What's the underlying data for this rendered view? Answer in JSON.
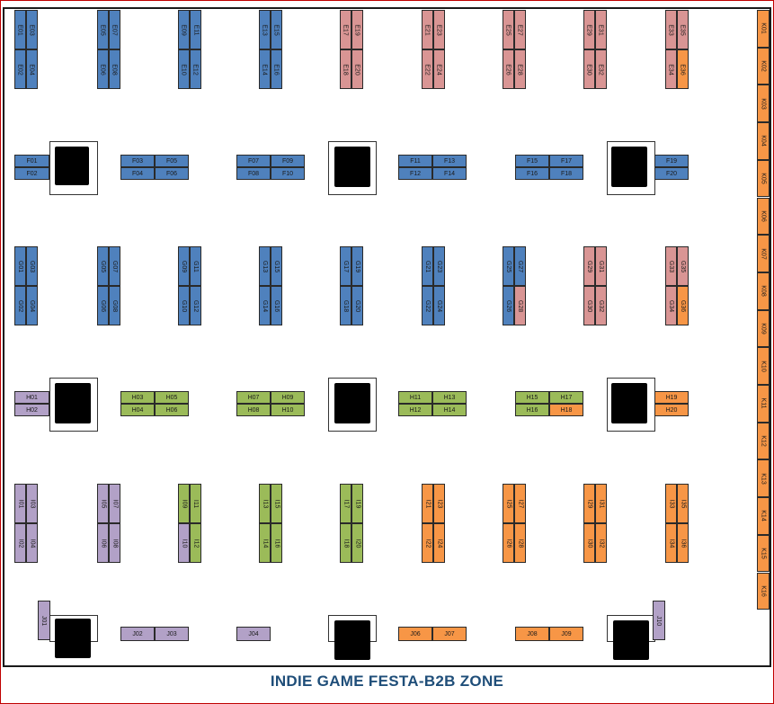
{
  "title": "INDIE GAME FESTA-B2B ZONE",
  "colors": {
    "blue": "#4f81bd",
    "pink": "#d99594",
    "orange": "#f79646",
    "green": "#9bbb59",
    "purple": "#b2a1c7",
    "frame": "#c00000",
    "title": "#1f4e79"
  },
  "booths": [
    {
      "id": "E01",
      "color": "blue"
    },
    {
      "id": "E02",
      "color": "blue"
    },
    {
      "id": "E03",
      "color": "blue"
    },
    {
      "id": "E04",
      "color": "blue"
    },
    {
      "id": "E05",
      "color": "blue"
    },
    {
      "id": "E06",
      "color": "blue"
    },
    {
      "id": "E07",
      "color": "blue"
    },
    {
      "id": "E08",
      "color": "blue"
    },
    {
      "id": "E09",
      "color": "blue"
    },
    {
      "id": "E10",
      "color": "blue"
    },
    {
      "id": "E11",
      "color": "blue"
    },
    {
      "id": "E12",
      "color": "blue"
    },
    {
      "id": "E13",
      "color": "blue"
    },
    {
      "id": "E14",
      "color": "blue"
    },
    {
      "id": "E15",
      "color": "blue"
    },
    {
      "id": "E16",
      "color": "blue"
    },
    {
      "id": "E17",
      "color": "pink"
    },
    {
      "id": "E18",
      "color": "pink"
    },
    {
      "id": "E19",
      "color": "pink"
    },
    {
      "id": "E20",
      "color": "pink"
    },
    {
      "id": "E21",
      "color": "pink"
    },
    {
      "id": "E22",
      "color": "pink"
    },
    {
      "id": "E23",
      "color": "pink"
    },
    {
      "id": "E24",
      "color": "pink"
    },
    {
      "id": "E25",
      "color": "pink"
    },
    {
      "id": "E26",
      "color": "pink"
    },
    {
      "id": "E27",
      "color": "pink"
    },
    {
      "id": "E28",
      "color": "pink"
    },
    {
      "id": "E29",
      "color": "pink"
    },
    {
      "id": "E30",
      "color": "pink"
    },
    {
      "id": "E31",
      "color": "pink"
    },
    {
      "id": "E32",
      "color": "pink"
    },
    {
      "id": "E33",
      "color": "pink"
    },
    {
      "id": "E34",
      "color": "pink"
    },
    {
      "id": "E35",
      "color": "pink"
    },
    {
      "id": "E36",
      "color": "orange"
    },
    {
      "id": "F01",
      "color": "blue"
    },
    {
      "id": "F02",
      "color": "blue"
    },
    {
      "id": "F03",
      "color": "blue"
    },
    {
      "id": "F04",
      "color": "blue"
    },
    {
      "id": "F05",
      "color": "blue"
    },
    {
      "id": "F06",
      "color": "blue"
    },
    {
      "id": "F07",
      "color": "blue"
    },
    {
      "id": "F08",
      "color": "blue"
    },
    {
      "id": "F09",
      "color": "blue"
    },
    {
      "id": "F10",
      "color": "blue"
    },
    {
      "id": "F11",
      "color": "blue"
    },
    {
      "id": "F12",
      "color": "blue"
    },
    {
      "id": "F13",
      "color": "blue"
    },
    {
      "id": "F14",
      "color": "blue"
    },
    {
      "id": "F15",
      "color": "blue"
    },
    {
      "id": "F16",
      "color": "blue"
    },
    {
      "id": "F17",
      "color": "blue"
    },
    {
      "id": "F18",
      "color": "blue"
    },
    {
      "id": "F19",
      "color": "blue"
    },
    {
      "id": "F20",
      "color": "blue"
    },
    {
      "id": "G01",
      "color": "blue"
    },
    {
      "id": "G02",
      "color": "blue"
    },
    {
      "id": "G03",
      "color": "blue"
    },
    {
      "id": "G04",
      "color": "blue"
    },
    {
      "id": "G05",
      "color": "blue"
    },
    {
      "id": "G06",
      "color": "blue"
    },
    {
      "id": "G07",
      "color": "blue"
    },
    {
      "id": "G08",
      "color": "blue"
    },
    {
      "id": "G09",
      "color": "blue"
    },
    {
      "id": "G10",
      "color": "blue"
    },
    {
      "id": "G11",
      "color": "blue"
    },
    {
      "id": "G12",
      "color": "blue"
    },
    {
      "id": "G13",
      "color": "blue"
    },
    {
      "id": "G14",
      "color": "blue"
    },
    {
      "id": "G15",
      "color": "blue"
    },
    {
      "id": "G16",
      "color": "blue"
    },
    {
      "id": "G17",
      "color": "blue"
    },
    {
      "id": "G18",
      "color": "blue"
    },
    {
      "id": "G19",
      "color": "blue"
    },
    {
      "id": "G20",
      "color": "blue"
    },
    {
      "id": "G21",
      "color": "blue"
    },
    {
      "id": "G22",
      "color": "blue"
    },
    {
      "id": "G23",
      "color": "blue"
    },
    {
      "id": "G24",
      "color": "blue"
    },
    {
      "id": "G25",
      "color": "blue"
    },
    {
      "id": "G26",
      "color": "blue"
    },
    {
      "id": "G27",
      "color": "blue"
    },
    {
      "id": "G28",
      "color": "pink"
    },
    {
      "id": "G29",
      "color": "pink"
    },
    {
      "id": "G30",
      "color": "pink"
    },
    {
      "id": "G31",
      "color": "pink"
    },
    {
      "id": "G32",
      "color": "pink"
    },
    {
      "id": "G33",
      "color": "pink"
    },
    {
      "id": "G34",
      "color": "pink"
    },
    {
      "id": "G35",
      "color": "pink"
    },
    {
      "id": "G36",
      "color": "orange"
    },
    {
      "id": "H01",
      "color": "purple"
    },
    {
      "id": "H02",
      "color": "purple"
    },
    {
      "id": "H03",
      "color": "green"
    },
    {
      "id": "H04",
      "color": "green"
    },
    {
      "id": "H05",
      "color": "green"
    },
    {
      "id": "H06",
      "color": "green"
    },
    {
      "id": "H07",
      "color": "green"
    },
    {
      "id": "H08",
      "color": "green"
    },
    {
      "id": "H09",
      "color": "green"
    },
    {
      "id": "H10",
      "color": "green"
    },
    {
      "id": "H11",
      "color": "green"
    },
    {
      "id": "H12",
      "color": "green"
    },
    {
      "id": "H13",
      "color": "green"
    },
    {
      "id": "H14",
      "color": "green"
    },
    {
      "id": "H15",
      "color": "green"
    },
    {
      "id": "H16",
      "color": "green"
    },
    {
      "id": "H17",
      "color": "green"
    },
    {
      "id": "H18",
      "color": "orange"
    },
    {
      "id": "H19",
      "color": "orange"
    },
    {
      "id": "H20",
      "color": "orange"
    },
    {
      "id": "I01",
      "color": "purple"
    },
    {
      "id": "I02",
      "color": "purple"
    },
    {
      "id": "I03",
      "color": "purple"
    },
    {
      "id": "I04",
      "color": "purple"
    },
    {
      "id": "I05",
      "color": "purple"
    },
    {
      "id": "I06",
      "color": "purple"
    },
    {
      "id": "I07",
      "color": "purple"
    },
    {
      "id": "I08",
      "color": "purple"
    },
    {
      "id": "I09",
      "color": "green"
    },
    {
      "id": "I10",
      "color": "purple"
    },
    {
      "id": "I11",
      "color": "green"
    },
    {
      "id": "I12",
      "color": "green"
    },
    {
      "id": "I13",
      "color": "green"
    },
    {
      "id": "I14",
      "color": "green"
    },
    {
      "id": "I15",
      "color": "green"
    },
    {
      "id": "I16",
      "color": "green"
    },
    {
      "id": "I17",
      "color": "green"
    },
    {
      "id": "I18",
      "color": "green"
    },
    {
      "id": "I19",
      "color": "green"
    },
    {
      "id": "I20",
      "color": "green"
    },
    {
      "id": "I21",
      "color": "orange"
    },
    {
      "id": "I22",
      "color": "orange"
    },
    {
      "id": "I23",
      "color": "orange"
    },
    {
      "id": "I24",
      "color": "orange"
    },
    {
      "id": "I25",
      "color": "orange"
    },
    {
      "id": "I26",
      "color": "orange"
    },
    {
      "id": "I27",
      "color": "orange"
    },
    {
      "id": "I28",
      "color": "orange"
    },
    {
      "id": "I29",
      "color": "orange"
    },
    {
      "id": "I30",
      "color": "orange"
    },
    {
      "id": "I31",
      "color": "orange"
    },
    {
      "id": "I32",
      "color": "orange"
    },
    {
      "id": "I33",
      "color": "orange"
    },
    {
      "id": "I34",
      "color": "orange"
    },
    {
      "id": "I35",
      "color": "orange"
    },
    {
      "id": "I36",
      "color": "orange"
    },
    {
      "id": "J01",
      "color": "purple"
    },
    {
      "id": "J02",
      "color": "purple"
    },
    {
      "id": "J03",
      "color": "purple"
    },
    {
      "id": "J04",
      "color": "purple"
    },
    {
      "id": "J06",
      "color": "orange"
    },
    {
      "id": "J07",
      "color": "orange"
    },
    {
      "id": "J08",
      "color": "orange"
    },
    {
      "id": "J09",
      "color": "orange"
    },
    {
      "id": "J10",
      "color": "purple"
    },
    {
      "id": "K01",
      "color": "orange"
    },
    {
      "id": "K02",
      "color": "orange"
    },
    {
      "id": "K03",
      "color": "orange"
    },
    {
      "id": "K04",
      "color": "orange"
    },
    {
      "id": "K05",
      "color": "orange"
    },
    {
      "id": "K06",
      "color": "orange"
    },
    {
      "id": "K07",
      "color": "orange"
    },
    {
      "id": "K08",
      "color": "orange"
    },
    {
      "id": "K09",
      "color": "orange"
    },
    {
      "id": "K10",
      "color": "orange"
    },
    {
      "id": "K11",
      "color": "orange"
    },
    {
      "id": "K12",
      "color": "orange"
    },
    {
      "id": "K13",
      "color": "orange"
    },
    {
      "id": "K14",
      "color": "orange"
    },
    {
      "id": "K15",
      "color": "orange"
    },
    {
      "id": "K16",
      "color": "orange"
    }
  ]
}
